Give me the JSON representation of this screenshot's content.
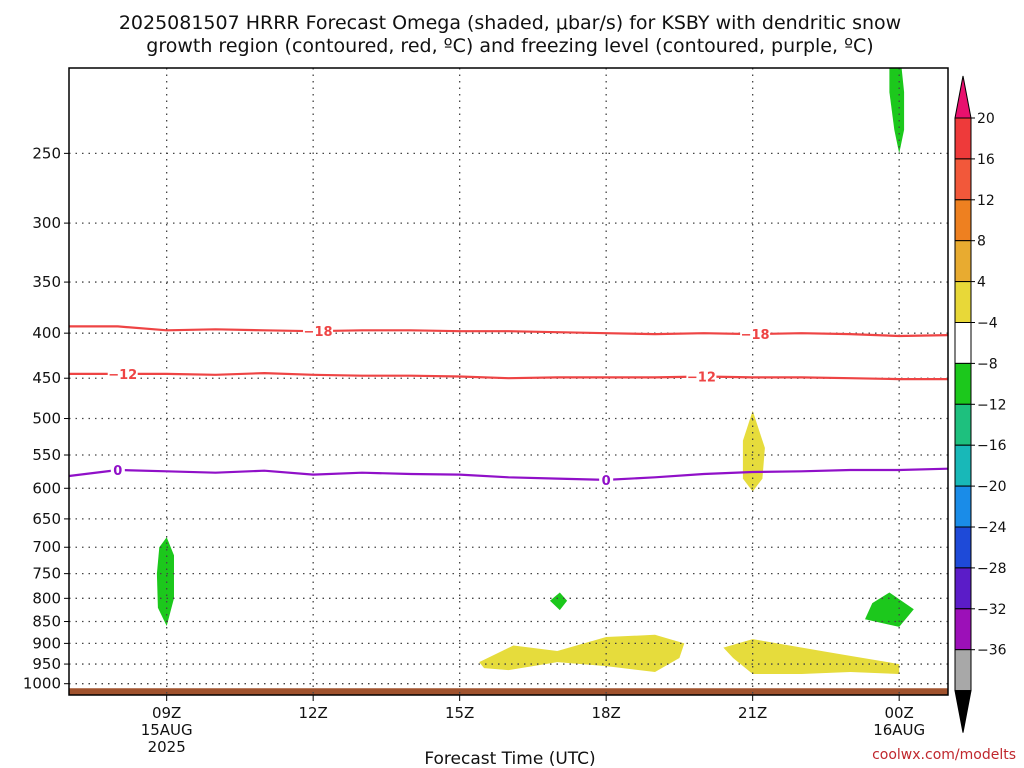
{
  "chart_data": {
    "type": "heatmap",
    "title_line1": "2025081507 HRRR Forecast Omega (shaded, μbar/s) for KSBY with dendritic snow",
    "title_line2": "growth region (contoured, red, ºC) and freezing level (contoured, purple, ºC)",
    "xlabel": "Forecast Time (UTC)",
    "credit": "coolwx.com/modelts",
    "xlim": [
      7,
      25
    ],
    "ylim": [
      1030,
      200
    ],
    "y_scale": "log",
    "grid": true,
    "x_ticks": [
      {
        "x": 9,
        "line1": "09Z",
        "line2": "15AUG",
        "line3": "2025"
      },
      {
        "x": 12,
        "line1": "12Z",
        "line2": "",
        "line3": ""
      },
      {
        "x": 15,
        "line1": "15Z",
        "line2": "",
        "line3": ""
      },
      {
        "x": 18,
        "line1": "18Z",
        "line2": "",
        "line3": ""
      },
      {
        "x": 21,
        "line1": "21Z",
        "line2": "",
        "line3": ""
      },
      {
        "x": 24,
        "line1": "00Z",
        "line2": "16AUG",
        "line3": ""
      }
    ],
    "y_ticks": [
      "250",
      "300",
      "350",
      "400",
      "450",
      "500",
      "550",
      "600",
      "650",
      "700",
      "750",
      "800",
      "850",
      "900",
      "950",
      "1000"
    ],
    "colorbar": {
      "labels": [
        "20",
        "16",
        "12",
        "8",
        "4",
        "−4",
        "−8",
        "−12",
        "−16",
        "−20",
        "−24",
        "−28",
        "−32",
        "−36"
      ],
      "colors": [
        "#e8106e",
        "#ee3a3a",
        "#f2583a",
        "#ee8020",
        "#e8ab30",
        "#e8d838",
        "#ffffff",
        "#1cc81c",
        "#1ec07e",
        "#18b8b8",
        "#1a8ce8",
        "#1e4ad8",
        "#5b1cc8",
        "#9c10b8",
        "#a8a8a8",
        "#000000"
      ]
    },
    "contours": [
      {
        "name": "-18",
        "color": "#ee4444",
        "label": "−18",
        "points": [
          [
            7,
            393
          ],
          [
            8,
            393
          ],
          [
            9,
            397
          ],
          [
            10,
            396
          ],
          [
            11,
            397
          ],
          [
            12,
            398
          ],
          [
            13,
            397
          ],
          [
            14,
            397
          ],
          [
            15,
            398
          ],
          [
            16,
            398
          ],
          [
            17,
            399
          ],
          [
            18,
            400
          ],
          [
            19,
            401
          ],
          [
            20,
            400
          ],
          [
            21,
            401
          ],
          [
            22,
            400
          ],
          [
            23,
            401
          ],
          [
            24,
            403
          ],
          [
            25,
            402
          ]
        ],
        "label_x": [
          12.1,
          21.05
        ]
      },
      {
        "name": "-12",
        "color": "#ee4444",
        "label": "−12",
        "points": [
          [
            7,
            445
          ],
          [
            8,
            445
          ],
          [
            9,
            445
          ],
          [
            10,
            446
          ],
          [
            11,
            444
          ],
          [
            12,
            446
          ],
          [
            13,
            447
          ],
          [
            14,
            447
          ],
          [
            15,
            448
          ],
          [
            16,
            450
          ],
          [
            17,
            449
          ],
          [
            18,
            449
          ],
          [
            19,
            449
          ],
          [
            20,
            448
          ],
          [
            21,
            449
          ],
          [
            22,
            449
          ],
          [
            23,
            450
          ],
          [
            24,
            451
          ],
          [
            25,
            451
          ]
        ],
        "label_x": [
          8.1,
          19.95
        ]
      },
      {
        "name": "0",
        "color": "#9010c8",
        "label": "0",
        "points": [
          [
            7,
            581
          ],
          [
            8,
            572
          ],
          [
            9,
            574
          ],
          [
            10,
            576
          ],
          [
            11,
            573
          ],
          [
            12,
            579
          ],
          [
            13,
            576
          ],
          [
            14,
            578
          ],
          [
            15,
            579
          ],
          [
            16,
            583
          ],
          [
            17,
            585
          ],
          [
            18,
            587
          ],
          [
            19,
            583
          ],
          [
            20,
            578
          ],
          [
            21,
            575
          ],
          [
            22,
            574
          ],
          [
            23,
            572
          ],
          [
            24,
            572
          ],
          [
            25,
            570
          ]
        ],
        "label_x": [
          8.0,
          18.0
        ]
      }
    ],
    "shaded_regions": [
      {
        "value": -4,
        "color": "#1cc81c",
        "points": [
          [
            23.8,
            200
          ],
          [
            24.05,
            200
          ],
          [
            24.1,
            213
          ],
          [
            24.1,
            235
          ],
          [
            24.0,
            250
          ],
          [
            23.9,
            235
          ],
          [
            23.8,
            213
          ]
        ]
      },
      {
        "value": -4,
        "color": "#1cc81c",
        "points": [
          [
            9,
            682
          ],
          [
            9.15,
            715
          ],
          [
            9.15,
            800
          ],
          [
            9,
            860
          ],
          [
            8.82,
            820
          ],
          [
            8.8,
            750
          ],
          [
            8.85,
            700
          ]
        ]
      },
      {
        "value": -4,
        "color": "#1cc81c",
        "points": [
          [
            17.05,
            788
          ],
          [
            17.2,
            805
          ],
          [
            17.05,
            825
          ],
          [
            16.85,
            805
          ]
        ]
      },
      {
        "value": -4,
        "color": "#1cc81c",
        "points": [
          [
            23.8,
            788
          ],
          [
            24.3,
            823
          ],
          [
            24.0,
            862
          ],
          [
            23.3,
            845
          ],
          [
            23.45,
            810
          ]
        ]
      },
      {
        "value": 4,
        "color": "#e6dc3c",
        "points": [
          [
            21.0,
            490
          ],
          [
            21.25,
            540
          ],
          [
            21.2,
            585
          ],
          [
            21.0,
            605
          ],
          [
            20.8,
            585
          ],
          [
            20.8,
            530
          ]
        ]
      },
      {
        "value": 4,
        "color": "#e6dc3c",
        "points": [
          [
            15.4,
            945
          ],
          [
            16.1,
            905
          ],
          [
            17.0,
            918
          ],
          [
            18.0,
            885
          ],
          [
            19.0,
            880
          ],
          [
            19.6,
            900
          ],
          [
            19.5,
            935
          ],
          [
            19.0,
            970
          ],
          [
            18.0,
            955
          ],
          [
            17.0,
            945
          ],
          [
            16.0,
            965
          ],
          [
            15.5,
            960
          ]
        ]
      },
      {
        "value": 4,
        "color": "#e6dc3c",
        "points": [
          [
            20.4,
            910
          ],
          [
            21.0,
            890
          ],
          [
            22.5,
            920
          ],
          [
            23.0,
            930
          ],
          [
            24.0,
            950
          ],
          [
            24.0,
            975
          ],
          [
            23.0,
            970
          ],
          [
            22.0,
            975
          ],
          [
            21.0,
            975
          ],
          [
            20.6,
            935
          ]
        ]
      }
    ],
    "surface": {
      "color": "#a0522d",
      "top_hpa": 1012
    }
  }
}
